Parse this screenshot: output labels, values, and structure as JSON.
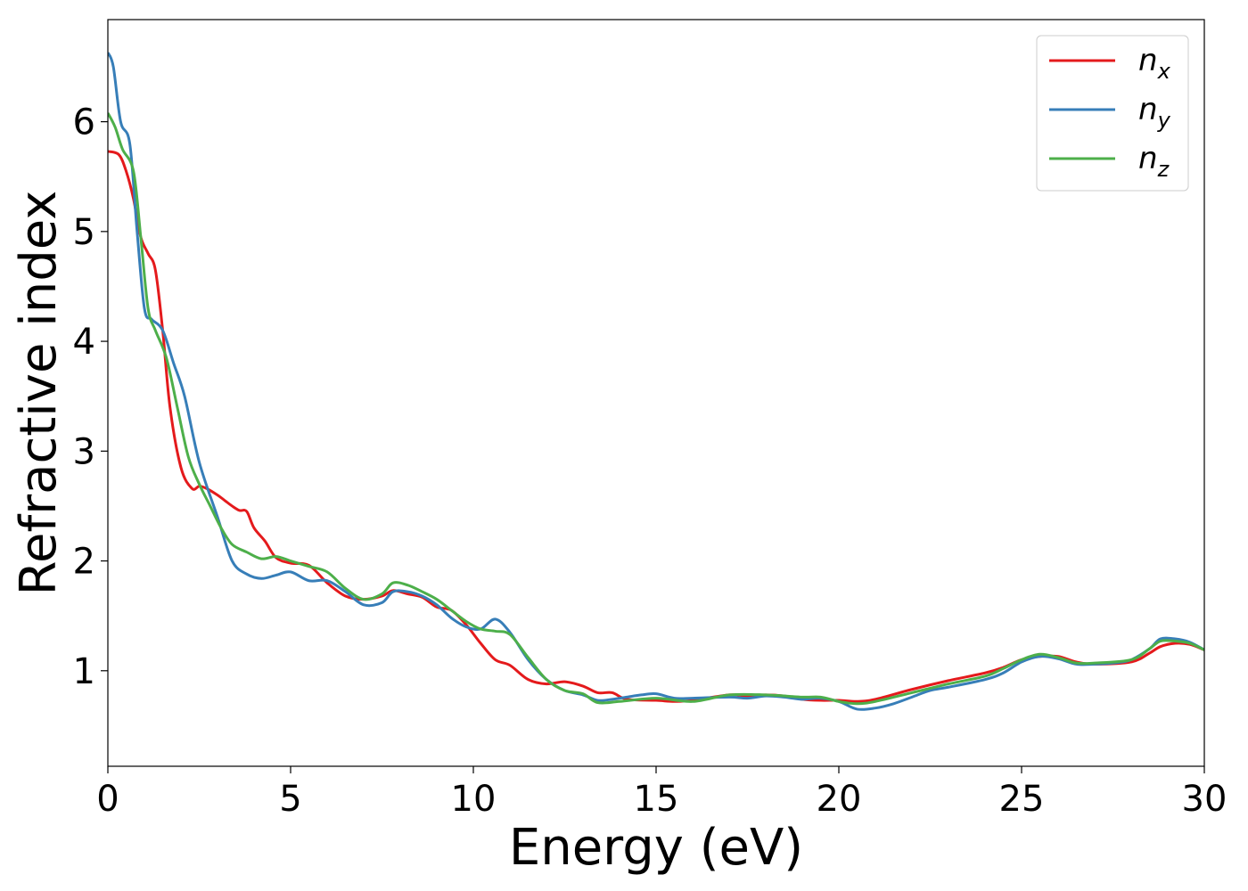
{
  "chart_data": {
    "type": "line",
    "xlabel": "Energy (eV)",
    "ylabel": "Refractive index",
    "xlim": [
      0,
      30
    ],
    "ylim": [
      0.13,
      6.93
    ],
    "xticks": [
      0,
      5,
      10,
      15,
      20,
      25,
      30
    ],
    "yticks": [
      1,
      2,
      3,
      4,
      5,
      6
    ],
    "grid": false,
    "legend_position": "top-right",
    "series": [
      {
        "name": "n",
        "subscript": "x",
        "color": "#e41a1c",
        "x": [
          0,
          0.3,
          0.5,
          0.7,
          0.9,
          1.1,
          1.3,
          1.5,
          1.7,
          2.0,
          2.3,
          2.5,
          2.7,
          3.0,
          3.2,
          3.4,
          3.6,
          3.8,
          4.0,
          4.3,
          4.6,
          5.0,
          5.5,
          6.0,
          6.5,
          7.0,
          7.5,
          7.8,
          8.2,
          8.6,
          9.0,
          9.4,
          9.8,
          10.2,
          10.6,
          11.0,
          11.5,
          12.0,
          12.5,
          13.0,
          13.4,
          13.8,
          14.2,
          15.0,
          15.5,
          16.0,
          17.0,
          17.5,
          18.0,
          18.5,
          19.0,
          19.5,
          20.0,
          20.5,
          21.0,
          22.0,
          23.0,
          24.0,
          24.5,
          25.0,
          25.5,
          26.0,
          26.5,
          27.0,
          28.0,
          28.5,
          28.8,
          29.2,
          29.6,
          30.0
        ],
        "values": [
          5.73,
          5.7,
          5.55,
          5.3,
          4.95,
          4.8,
          4.65,
          4.1,
          3.4,
          2.85,
          2.66,
          2.68,
          2.66,
          2.6,
          2.55,
          2.5,
          2.46,
          2.45,
          2.3,
          2.18,
          2.03,
          1.98,
          1.96,
          1.8,
          1.68,
          1.65,
          1.68,
          1.73,
          1.7,
          1.67,
          1.58,
          1.55,
          1.42,
          1.25,
          1.1,
          1.05,
          0.92,
          0.88,
          0.9,
          0.86,
          0.8,
          0.8,
          0.74,
          0.73,
          0.72,
          0.73,
          0.78,
          0.77,
          0.78,
          0.77,
          0.74,
          0.73,
          0.73,
          0.72,
          0.74,
          0.83,
          0.91,
          0.98,
          1.03,
          1.1,
          1.13,
          1.13,
          1.08,
          1.06,
          1.08,
          1.16,
          1.22,
          1.25,
          1.24,
          1.19
        ]
      },
      {
        "name": "n",
        "subscript": "y",
        "color": "#377eb8",
        "x": [
          0,
          0.15,
          0.35,
          0.6,
          0.8,
          1.0,
          1.2,
          1.5,
          1.8,
          2.1,
          2.5,
          3.0,
          3.4,
          3.8,
          4.2,
          4.6,
          5.0,
          5.5,
          6.0,
          6.5,
          7.0,
          7.5,
          7.8,
          8.2,
          8.6,
          9.0,
          9.4,
          9.8,
          10.2,
          10.6,
          11.0,
          11.5,
          12.0,
          12.5,
          13.0,
          13.4,
          13.8,
          14.2,
          14.6,
          15.0,
          15.5,
          16.0,
          17.0,
          17.5,
          18.0,
          18.5,
          19.0,
          19.5,
          20.0,
          20.5,
          21.0,
          21.5,
          22.0,
          22.5,
          23.0,
          24.0,
          24.5,
          25.0,
          25.5,
          26.0,
          26.5,
          27.0,
          27.5,
          28.0,
          28.5,
          28.8,
          29.2,
          29.6,
          30.0
        ],
        "values": [
          6.63,
          6.5,
          6.0,
          5.8,
          5.0,
          4.3,
          4.2,
          4.1,
          3.8,
          3.5,
          2.9,
          2.4,
          2.0,
          1.88,
          1.84,
          1.87,
          1.9,
          1.82,
          1.82,
          1.72,
          1.6,
          1.62,
          1.72,
          1.72,
          1.68,
          1.6,
          1.48,
          1.4,
          1.38,
          1.47,
          1.35,
          1.1,
          0.92,
          0.82,
          0.78,
          0.73,
          0.74,
          0.76,
          0.78,
          0.79,
          0.75,
          0.75,
          0.76,
          0.75,
          0.77,
          0.76,
          0.74,
          0.75,
          0.72,
          0.65,
          0.66,
          0.7,
          0.76,
          0.82,
          0.85,
          0.92,
          0.98,
          1.08,
          1.13,
          1.11,
          1.06,
          1.06,
          1.07,
          1.1,
          1.2,
          1.29,
          1.29,
          1.26,
          1.19
        ]
      },
      {
        "name": "n",
        "subscript": "z",
        "color": "#4daf4a",
        "x": [
          0,
          0.2,
          0.4,
          0.7,
          0.9,
          1.1,
          1.3,
          1.6,
          1.9,
          2.2,
          2.5,
          2.8,
          3.1,
          3.4,
          3.8,
          4.2,
          4.6,
          5.0,
          5.5,
          6.0,
          6.5,
          7.0,
          7.5,
          7.8,
          8.2,
          8.6,
          9.0,
          9.4,
          9.8,
          10.2,
          10.6,
          11.0,
          11.5,
          12.0,
          12.5,
          13.0,
          13.4,
          14.0,
          15.0,
          16.0,
          17.0,
          18.0,
          19.0,
          19.5,
          20.0,
          20.5,
          21.0,
          22.0,
          23.0,
          24.0,
          24.5,
          25.0,
          25.5,
          26.0,
          26.5,
          27.0,
          28.0,
          28.5,
          28.8,
          29.2,
          29.6,
          30.0
        ],
        "values": [
          6.08,
          5.95,
          5.75,
          5.55,
          4.95,
          4.3,
          4.1,
          3.85,
          3.4,
          2.95,
          2.7,
          2.5,
          2.3,
          2.15,
          2.08,
          2.02,
          2.04,
          2.0,
          1.95,
          1.9,
          1.75,
          1.65,
          1.7,
          1.8,
          1.78,
          1.72,
          1.65,
          1.55,
          1.45,
          1.38,
          1.36,
          1.33,
          1.12,
          0.92,
          0.82,
          0.79,
          0.71,
          0.72,
          0.75,
          0.72,
          0.78,
          0.78,
          0.76,
          0.76,
          0.72,
          0.7,
          0.72,
          0.8,
          0.88,
          0.95,
          1.02,
          1.1,
          1.15,
          1.12,
          1.07,
          1.07,
          1.1,
          1.2,
          1.27,
          1.27,
          1.25,
          1.19
        ]
      }
    ]
  }
}
